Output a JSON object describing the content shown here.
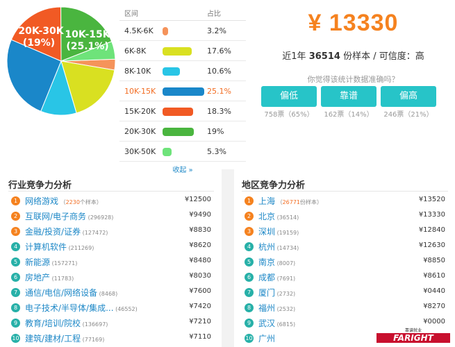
{
  "pie": {
    "slices": [
      {
        "label": "4.5K-6K",
        "value": 3.2,
        "color": "#f5935a"
      },
      {
        "label": "6K-8K",
        "value": 17.6,
        "color": "#d9e021"
      },
      {
        "label": "8K-10K",
        "value": 10.6,
        "color": "#29c5e6"
      },
      {
        "label": "10K-15K",
        "value": 25.1,
        "color": "#1a87c9"
      },
      {
        "label": "15K-20K",
        "value": 18.3,
        "color": "#f15a24"
      },
      {
        "label": "20K-30K",
        "value": 19,
        "color": "#4ab53f"
      },
      {
        "label": "30K-50K",
        "value": 5.3,
        "color": "#6ee37a"
      }
    ],
    "label_10k": [
      "10K-15K",
      "(25.1%)"
    ],
    "label_20k": [
      "20K-30K",
      "(19%)"
    ]
  },
  "dist": {
    "header_range": "区间",
    "header_pct": "占比",
    "rows": [
      {
        "range": "4.5K-6K",
        "pct": "3.2%",
        "value": 3.2,
        "color": "#f5935a",
        "active": false
      },
      {
        "range": "6K-8K",
        "pct": "17.6%",
        "value": 17.6,
        "color": "#d9e021",
        "active": false
      },
      {
        "range": "8K-10K",
        "pct": "10.6%",
        "value": 10.6,
        "color": "#29c5e6",
        "active": false
      },
      {
        "range": "10K-15K",
        "pct": "25.1%",
        "value": 25.1,
        "color": "#1a87c9",
        "active": true
      },
      {
        "range": "15K-20K",
        "pct": "18.3%",
        "value": 18.3,
        "color": "#f15a24",
        "active": false
      },
      {
        "range": "20K-30K",
        "pct": "19%",
        "value": 19,
        "color": "#4ab53f",
        "active": false
      },
      {
        "range": "30K-50K",
        "pct": "5.3%",
        "value": 5.3,
        "color": "#6ee37a",
        "active": false
      }
    ],
    "collapse": "收起 »"
  },
  "summary": {
    "salary": "¥ 13330",
    "sample_prefix": "近1年",
    "sample_count": "36514",
    "sample_suffix": "份样本 / 可信度：高",
    "question": "你觉得该统计数据准确吗？",
    "votes": [
      {
        "label": "偏低",
        "count": "758票（65%）"
      },
      {
        "label": "靠谱",
        "count": "162票（14%）"
      },
      {
        "label": "偏高",
        "count": "246票（21%）"
      }
    ]
  },
  "industry": {
    "title": "行业竞争力分析",
    "items": [
      {
        "num": "1",
        "name": "网络游戏",
        "count_hl": "2230",
        "count": "个样本）",
        "count_prefix": "（",
        "value": "¥12500"
      },
      {
        "num": "2",
        "name": "互联网/电子商务",
        "count": "(296928)",
        "value": "¥9490"
      },
      {
        "num": "3",
        "name": "金融/投资/证券",
        "count": "(127472)",
        "value": "¥8830"
      },
      {
        "num": "4",
        "name": "计算机软件",
        "count": "(211269)",
        "value": "¥8620"
      },
      {
        "num": "5",
        "name": "新能源",
        "count": "(157271)",
        "value": "¥8480"
      },
      {
        "num": "6",
        "name": "房地产",
        "count": "(11783)",
        "value": "¥8030"
      },
      {
        "num": "7",
        "name": "通信/电信/网络设备",
        "count": "(8468)",
        "value": "¥7600"
      },
      {
        "num": "8",
        "name": "电子技术/半导体/集成...",
        "count": "(46552)",
        "value": "¥7420"
      },
      {
        "num": "9",
        "name": "教育/培训/院校",
        "count": "(136697)",
        "value": "¥7210"
      },
      {
        "num": "10",
        "name": "建筑/建材/工程",
        "count": "(77169)",
        "value": "¥7110"
      }
    ]
  },
  "region": {
    "title": "地区竞争力分析",
    "items": [
      {
        "num": "1",
        "name": "上海",
        "count_hl": "26771",
        "count": "份样本）",
        "count_prefix": "（",
        "value": "¥13520"
      },
      {
        "num": "2",
        "name": "北京",
        "count": "(36514)",
        "value": "¥13330"
      },
      {
        "num": "3",
        "name": "深圳",
        "count": "(19159)",
        "value": "¥12840"
      },
      {
        "num": "4",
        "name": "杭州",
        "count": "(14734)",
        "value": "¥12630"
      },
      {
        "num": "5",
        "name": "南京",
        "count": "(8007)",
        "value": "¥8850"
      },
      {
        "num": "6",
        "name": "成都",
        "count": "(7691)",
        "value": "¥8610"
      },
      {
        "num": "7",
        "name": "厦门",
        "count": "(2732)",
        "value": "¥0440"
      },
      {
        "num": "8",
        "name": "福州",
        "count": "(2532)",
        "value": "¥8270"
      },
      {
        "num": "9",
        "name": "武汉",
        "count": "(6815)",
        "value": "¥0000"
      },
      {
        "num": "10",
        "name": "广州",
        "count": "",
        "value": ""
      }
    ]
  },
  "num_colors": [
    "#f5821f",
    "#f5821f",
    "#f5821f",
    "#27b0a8",
    "#27b0a8",
    "#27b0a8",
    "#27b0a8",
    "#27b0a8",
    "#27b0a8",
    "#27b0a8"
  ],
  "logo": {
    "top": "靠谱就业",
    "main": "FARIGHT"
  }
}
